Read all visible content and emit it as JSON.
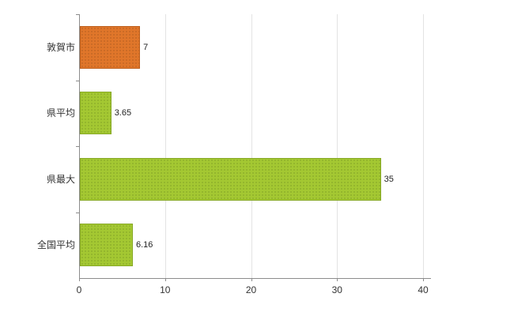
{
  "chart_data": {
    "type": "bar",
    "orientation": "horizontal",
    "title": "",
    "xlabel": "",
    "ylabel": "",
    "categories": [
      "敦賀市",
      "県平均",
      "県最大",
      "全国平均"
    ],
    "values": [
      7,
      3.65,
      35,
      6.16
    ],
    "value_labels": [
      "7",
      "3.65",
      "35",
      "6.16"
    ],
    "bar_colors": [
      "#e0762a",
      "#a4c832",
      "#a4c832",
      "#a4c832"
    ],
    "bar_border_colors": [
      "#bd5f1c",
      "#86a824",
      "#86a824",
      "#86a824"
    ],
    "xlim": [
      0,
      40
    ],
    "x_ticks": [
      0,
      10,
      20,
      30,
      40
    ],
    "grid": "vertical",
    "legend": "none",
    "axis_color": "#8c8c8c",
    "grid_color": "#e3e3e3",
    "background_color": "#ffffff"
  }
}
